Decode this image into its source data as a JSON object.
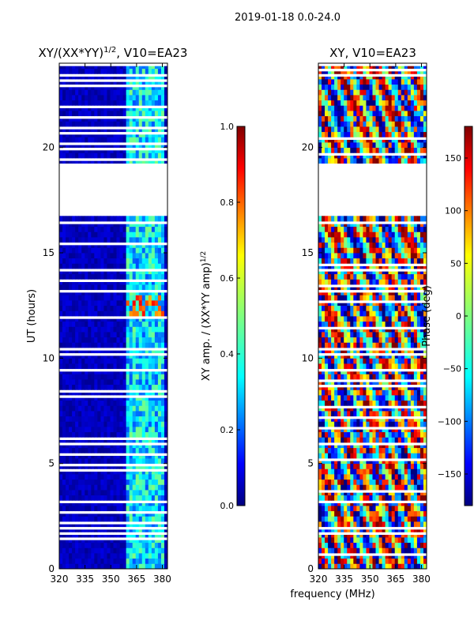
{
  "figure": {
    "suptitle": "2019-01-18 0.0-24.0",
    "shared_xlabel": "frequency (MHz)"
  },
  "chart_data": [
    {
      "type": "heatmap",
      "panel": "amplitude",
      "title": "XY/(XX*YY)^1/2, V10=EA23",
      "title_main": "XY/(XX*YY)",
      "title_exp": "1/2",
      "title_tail": ", V10=EA23",
      "xlabel": "",
      "ylabel": "UT (hours)",
      "xlim": [
        320,
        383
      ],
      "ylim": [
        0,
        24
      ],
      "xticks": [
        320,
        335,
        350,
        365,
        380
      ],
      "yticks": [
        0,
        5,
        10,
        15,
        20
      ],
      "colorbar": {
        "label_main": "XY amp. / (XX*YY amp)",
        "label_exp": "1/2",
        "vmin": 0.0,
        "vmax": 1.0,
        "ticks": [
          "0.0",
          "0.2",
          "0.4",
          "0.6",
          "0.8",
          "1.0"
        ],
        "colormap": [
          "#00007f",
          "#0000ff",
          "#007fff",
          "#00ffff",
          "#7fff7f",
          "#ffff00",
          "#ff7f00",
          "#ff0000",
          "#7f0000"
        ]
      },
      "no_data_ut_range": [
        16.7,
        19.2
      ]
    },
    {
      "type": "heatmap",
      "panel": "phase",
      "title": "XY, V10=EA23",
      "xlabel": "frequency (MHz)",
      "ylabel": "",
      "xlim": [
        320,
        383
      ],
      "ylim": [
        0,
        24
      ],
      "xticks": [
        320,
        335,
        350,
        365,
        380
      ],
      "yticks": [
        0,
        5,
        10,
        15,
        20
      ],
      "colorbar": {
        "label_main": "Phase (deg)",
        "vmin": -180,
        "vmax": 180,
        "ticks": [
          "−150",
          "−100",
          "−50",
          "0",
          "50",
          "100",
          "150"
        ],
        "colormap": [
          "#00007f",
          "#0000ff",
          "#007fff",
          "#00ffff",
          "#7fff7f",
          "#ffff00",
          "#ff7f00",
          "#ff0000",
          "#7f0000"
        ]
      },
      "no_data_ut_range": [
        16.7,
        19.2
      ]
    }
  ],
  "labels": {
    "ylabel_left": "UT (hours)",
    "cbar1_label": "XY amp. / (XX*YY amp)",
    "cbar1_label_exp": "1/2",
    "cbar2_label": "Phase (deg)"
  }
}
